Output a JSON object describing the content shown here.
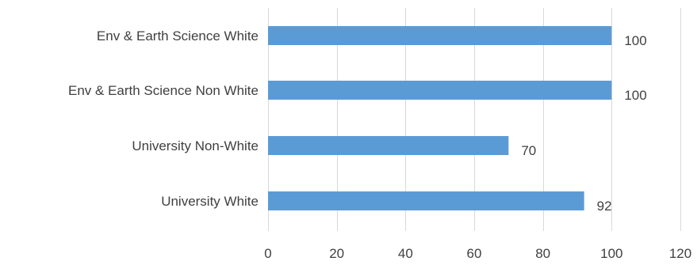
{
  "chart_data": {
    "type": "bar",
    "orientation": "horizontal",
    "title": "",
    "xlabel": "",
    "ylabel": "",
    "categories": [
      "Env & Earth Science White",
      "Env & Earth Science Non White",
      "University Non-White",
      "University White"
    ],
    "values": [
      100,
      100,
      70,
      92
    ],
    "data_labels": [
      "100",
      "100",
      "70",
      "92"
    ],
    "xlim": [
      0,
      120
    ],
    "x_ticks": [
      0,
      20,
      40,
      60,
      80,
      100,
      120
    ],
    "x_tick_labels": [
      "0",
      "20",
      "40",
      "60",
      "80",
      "100",
      "120"
    ],
    "grid": "vertical",
    "legend": "none",
    "bar_color": "#5B9BD5",
    "gridline_color": "#D9D9D9",
    "text_color": "#404040"
  }
}
